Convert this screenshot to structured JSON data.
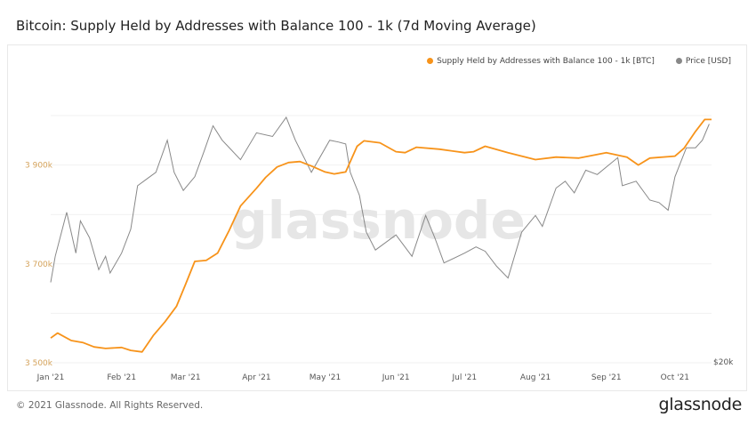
{
  "title": "Bitcoin: Supply Held by Addresses with Balance 100 - 1k (7d Moving Average)",
  "footer": "© 2021 Glassnode. All Rights Reserved.",
  "logo": "glassnode",
  "watermark": "glassnode",
  "chart_data": {
    "type": "line",
    "title": "Bitcoin: Supply Held by Addresses with Balance 100 - 1k (7d Moving Average)",
    "x_ticks": [
      "Jan '21",
      "Feb '21",
      "Mar '21",
      "Apr '21",
      "May '21",
      "Jun '21",
      "Jul '21",
      "Aug '21",
      "Sep '21",
      "Oct '21"
    ],
    "x_tick_dates": [
      "2021-01-01",
      "2021-02-01",
      "2021-03-01",
      "2021-04-01",
      "2021-05-01",
      "2021-06-01",
      "2021-07-01",
      "2021-08-01",
      "2021-09-01",
      "2021-10-01"
    ],
    "xlim": [
      "2021-01-01",
      "2021-10-17"
    ],
    "y_left": {
      "ticks": [
        "3 500k",
        "3 700k",
        "3 900k"
      ],
      "tick_values": [
        3500,
        3700,
        3900
      ],
      "range": [
        3500,
        4000
      ],
      "unit": "k BTC"
    },
    "y_right": {
      "ticks": [
        "$20k"
      ],
      "tick_values": [
        20
      ],
      "scale": "log",
      "range": [
        20,
        64
      ],
      "unit": "k USD"
    },
    "grid": true,
    "legend_placement": "top-right",
    "series": [
      {
        "name": "Supply Held by Addresses with Balance 100 - 1k [BTC]",
        "axis": "left",
        "color": "#f7931a",
        "points": [
          [
            "2021-01-01",
            3550
          ],
          [
            "2021-01-04",
            3560
          ],
          [
            "2021-01-10",
            3545
          ],
          [
            "2021-01-15",
            3541
          ],
          [
            "2021-01-20",
            3532
          ],
          [
            "2021-01-25",
            3529
          ],
          [
            "2021-02-01",
            3531
          ],
          [
            "2021-02-05",
            3525
          ],
          [
            "2021-02-10",
            3522
          ],
          [
            "2021-02-15",
            3556
          ],
          [
            "2021-02-20",
            3583
          ],
          [
            "2021-02-25",
            3614
          ],
          [
            "2021-03-01",
            3659
          ],
          [
            "2021-03-05",
            3705
          ],
          [
            "2021-03-10",
            3707
          ],
          [
            "2021-03-15",
            3722
          ],
          [
            "2021-03-20",
            3767
          ],
          [
            "2021-03-25",
            3817
          ],
          [
            "2021-04-01",
            3853
          ],
          [
            "2021-04-05",
            3875
          ],
          [
            "2021-04-10",
            3896
          ],
          [
            "2021-04-15",
            3905
          ],
          [
            "2021-04-20",
            3907
          ],
          [
            "2021-04-25",
            3898
          ],
          [
            "2021-05-01",
            3886
          ],
          [
            "2021-05-05",
            3882
          ],
          [
            "2021-05-10",
            3886
          ],
          [
            "2021-05-15",
            3938
          ],
          [
            "2021-05-18",
            3949
          ],
          [
            "2021-05-25",
            3945
          ],
          [
            "2021-06-01",
            3927
          ],
          [
            "2021-06-05",
            3925
          ],
          [
            "2021-06-10",
            3936
          ],
          [
            "2021-06-20",
            3932
          ],
          [
            "2021-07-01",
            3925
          ],
          [
            "2021-07-05",
            3927
          ],
          [
            "2021-07-10",
            3938
          ],
          [
            "2021-07-20",
            3925
          ],
          [
            "2021-08-01",
            3911
          ],
          [
            "2021-08-10",
            3916
          ],
          [
            "2021-08-20",
            3914
          ],
          [
            "2021-09-01",
            3925
          ],
          [
            "2021-09-10",
            3916
          ],
          [
            "2021-09-15",
            3900
          ],
          [
            "2021-09-20",
            3914
          ],
          [
            "2021-10-01",
            3918
          ],
          [
            "2021-10-05",
            3934
          ],
          [
            "2021-10-10",
            3968
          ],
          [
            "2021-10-14",
            3992
          ],
          [
            "2021-10-17",
            3992
          ]
        ]
      },
      {
        "name": "Price [USD]",
        "axis": "right",
        "color": "#888888",
        "points": [
          [
            "2021-01-01",
            29.2
          ],
          [
            "2021-01-03",
            33
          ],
          [
            "2021-01-08",
            40.6
          ],
          [
            "2021-01-12",
            33.5
          ],
          [
            "2021-01-14",
            39
          ],
          [
            "2021-01-18",
            36
          ],
          [
            "2021-01-22",
            31
          ],
          [
            "2021-01-25",
            33
          ],
          [
            "2021-01-27",
            30.5
          ],
          [
            "2021-02-01",
            33.5
          ],
          [
            "2021-02-05",
            37.5
          ],
          [
            "2021-02-08",
            46
          ],
          [
            "2021-02-12",
            47.5
          ],
          [
            "2021-02-16",
            49
          ],
          [
            "2021-02-21",
            57
          ],
          [
            "2021-02-24",
            49
          ],
          [
            "2021-02-28",
            45
          ],
          [
            "2021-03-05",
            48
          ],
          [
            "2021-03-09",
            54
          ],
          [
            "2021-03-13",
            61
          ],
          [
            "2021-03-17",
            57
          ],
          [
            "2021-03-25",
            52
          ],
          [
            "2021-04-01",
            59
          ],
          [
            "2021-04-08",
            58
          ],
          [
            "2021-04-14",
            63.5
          ],
          [
            "2021-04-18",
            57
          ],
          [
            "2021-04-25",
            49
          ],
          [
            "2021-05-03",
            57
          ],
          [
            "2021-05-07",
            56.5
          ],
          [
            "2021-05-10",
            56
          ],
          [
            "2021-05-12",
            49
          ],
          [
            "2021-05-16",
            44
          ],
          [
            "2021-05-19",
            37
          ],
          [
            "2021-05-23",
            34
          ],
          [
            "2021-06-01",
            36.5
          ],
          [
            "2021-06-08",
            33
          ],
          [
            "2021-06-14",
            40
          ],
          [
            "2021-06-18",
            36
          ],
          [
            "2021-06-22",
            32
          ],
          [
            "2021-07-01",
            33.5
          ],
          [
            "2021-07-06",
            34.5
          ],
          [
            "2021-07-10",
            33.8
          ],
          [
            "2021-07-15",
            31.5
          ],
          [
            "2021-07-20",
            29.8
          ],
          [
            "2021-07-26",
            37
          ],
          [
            "2021-08-01",
            40
          ],
          [
            "2021-08-04",
            38
          ],
          [
            "2021-08-10",
            45.5
          ],
          [
            "2021-08-14",
            47
          ],
          [
            "2021-08-18",
            44.5
          ],
          [
            "2021-08-23",
            49.5
          ],
          [
            "2021-08-28",
            48.5
          ],
          [
            "2021-09-06",
            52.5
          ],
          [
            "2021-09-08",
            46
          ],
          [
            "2021-09-14",
            47
          ],
          [
            "2021-09-20",
            43
          ],
          [
            "2021-09-24",
            42.5
          ],
          [
            "2021-09-28",
            41
          ],
          [
            "2021-10-01",
            48
          ],
          [
            "2021-10-06",
            55
          ],
          [
            "2021-10-10",
            55
          ],
          [
            "2021-10-13",
            57
          ],
          [
            "2021-10-16",
            61.5
          ]
        ]
      }
    ]
  }
}
